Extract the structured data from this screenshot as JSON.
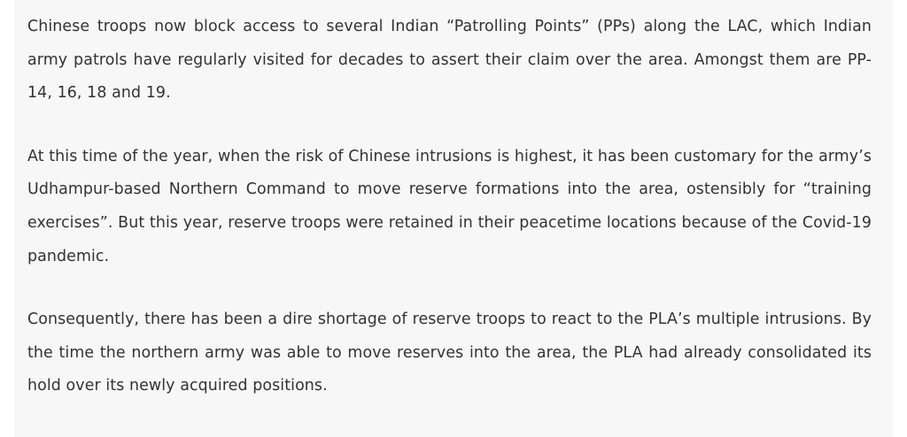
{
  "article": {
    "paragraphs": [
      "Chinese troops now block access to several Indian “Patrolling Points” (PPs) along the LAC, which Indian army patrols have regularly visited for decades to assert their claim over the area. Amongst them are PP-14, 16, 18 and 19.",
      "At this time of the year, when the risk of Chinese intrusions is highest, it has been customary for the army’s Udhampur-based Northern Command to move reserve formations into the area, ostensibly for “training exercises”. But this year, reserve troops were retained in their peacetime locations because of the Covid-19 pandemic.",
      "Consequently, there has been a dire shortage of reserve troops to react to the PLA’s multiple intrusions. By the time the northern army was able to move reserves into the area, the PLA had already consolidated its hold over its newly acquired positions."
    ]
  }
}
